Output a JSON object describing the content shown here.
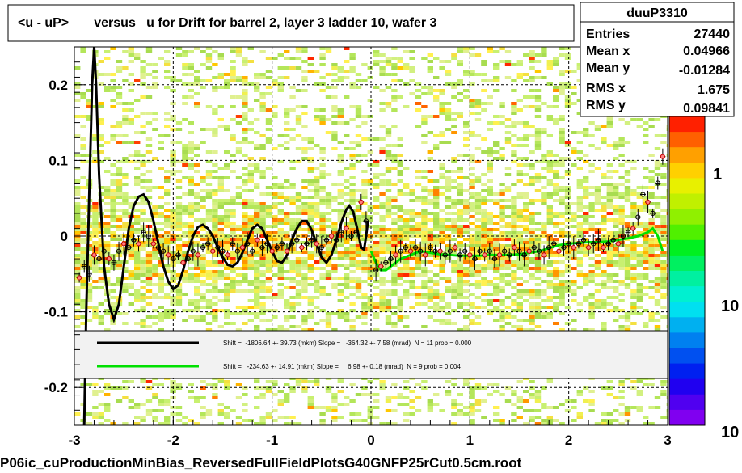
{
  "title": "<u - uP>       versus   u for Drift for barrel 2, layer 3 ladder 10, wafer 3",
  "footer": "P06ic_cuProductionMinBias_ReversedFullFieldPlotsG40GNFP25rCut0.5cm.root",
  "stats": {
    "name": "duuP3310",
    "rows": [
      {
        "label": "Entries",
        "value": "27440"
      },
      {
        "label": "Mean x",
        "value": "0.04966"
      },
      {
        "label": "Mean y",
        "value": "-0.01284"
      },
      {
        "label": "RMS x",
        "value": "1.675"
      },
      {
        "label": "RMS y",
        "value": "0.09841"
      }
    ]
  },
  "legend": [
    {
      "color": "#000000",
      "text": "Shift =  -1806.64 +- 39.73 (mkm) Slope =   -364.32 +- 7.58 (mrad)  N = 11 prob = 0.000"
    },
    {
      "color": "#00e000",
      "text": "Shift =   -234.63 +- 14.91 (mkm) Slope =     6.98 +- 0.18 (mrad)  N = 9 prob = 0.004"
    }
  ],
  "colorbar_labels": [
    "1",
    "10",
    "10"
  ],
  "chart_data": {
    "type": "heatmap",
    "xlim": [
      -3,
      3
    ],
    "ylim": [
      -0.25,
      0.25
    ],
    "x_ticks": [
      -3,
      -2,
      -1,
      0,
      1,
      2,
      3
    ],
    "y_ticks": [
      -0.2,
      -0.1,
      0,
      0.1,
      0.2
    ],
    "x_tick_labels": [
      "-3",
      "-2",
      "-1",
      "0",
      "1",
      "2",
      "3"
    ],
    "y_tick_labels": [
      "-0.2",
      "-0.1",
      "0",
      "0.1",
      "0.2"
    ],
    "grid": true,
    "profile_points": [
      [
        -2.95,
        -0.055
      ],
      [
        -2.9,
        -0.04
      ],
      [
        -2.85,
        -0.05
      ],
      [
        -2.8,
        -0.025
      ],
      [
        -2.75,
        -0.03
      ],
      [
        -2.7,
        -0.02
      ],
      [
        -2.65,
        -0.03
      ],
      [
        -2.6,
        -0.035
      ],
      [
        -2.55,
        -0.02
      ],
      [
        -2.5,
        -0.01
      ],
      [
        -2.45,
        -0.015
      ],
      [
        -2.4,
        -0.005
      ],
      [
        -2.35,
        -0.01
      ],
      [
        -2.3,
        0.005
      ],
      [
        -2.25,
        0.0
      ],
      [
        -2.2,
        -0.01
      ],
      [
        -2.15,
        -0.015
      ],
      [
        -2.1,
        -0.02
      ],
      [
        -2.05,
        -0.025
      ],
      [
        -2.0,
        -0.03
      ],
      [
        -1.95,
        -0.025
      ],
      [
        -1.9,
        -0.035
      ],
      [
        -1.85,
        -0.03
      ],
      [
        -1.8,
        -0.02
      ],
      [
        -1.75,
        -0.025
      ],
      [
        -1.7,
        -0.015
      ],
      [
        -1.65,
        -0.01
      ],
      [
        -1.6,
        -0.02
      ],
      [
        -1.55,
        -0.015
      ],
      [
        -1.5,
        -0.02
      ],
      [
        -1.45,
        -0.025
      ],
      [
        -1.4,
        -0.01
      ],
      [
        -1.35,
        -0.02
      ],
      [
        -1.3,
        -0.015
      ],
      [
        -1.25,
        -0.01
      ],
      [
        -1.2,
        -0.02
      ],
      [
        -1.15,
        -0.005
      ],
      [
        -1.1,
        -0.015
      ],
      [
        -1.05,
        -0.01
      ],
      [
        -1.0,
        -0.02
      ],
      [
        -0.95,
        -0.015
      ],
      [
        -0.9,
        -0.01
      ],
      [
        -0.85,
        -0.02
      ],
      [
        -0.8,
        -0.01
      ],
      [
        -0.75,
        -0.005
      ],
      [
        -0.7,
        -0.015
      ],
      [
        -0.65,
        -0.01
      ],
      [
        -0.6,
        -0.005
      ],
      [
        -0.55,
        -0.01
      ],
      [
        -0.5,
        -0.015
      ],
      [
        -0.45,
        -0.005
      ],
      [
        -0.4,
        0.0
      ],
      [
        -0.35,
        -0.005
      ],
      [
        -0.3,
        0.005
      ],
      [
        -0.25,
        0.01
      ],
      [
        -0.2,
        0.0
      ],
      [
        -0.15,
        0.005
      ],
      [
        -0.1,
        0.045
      ],
      [
        -0.05,
        0.02
      ],
      [
        0.05,
        -0.045
      ],
      [
        0.1,
        -0.04
      ],
      [
        0.15,
        -0.035
      ],
      [
        0.2,
        -0.03
      ],
      [
        0.25,
        -0.025
      ],
      [
        0.3,
        -0.02
      ],
      [
        0.35,
        -0.015
      ],
      [
        0.4,
        -0.02
      ],
      [
        0.45,
        -0.015
      ],
      [
        0.5,
        -0.02
      ],
      [
        0.55,
        -0.025
      ],
      [
        0.6,
        -0.015
      ],
      [
        0.65,
        -0.02
      ],
      [
        0.7,
        -0.02
      ],
      [
        0.75,
        -0.025
      ],
      [
        0.8,
        -0.02
      ],
      [
        0.85,
        -0.015
      ],
      [
        0.9,
        -0.025
      ],
      [
        0.95,
        -0.02
      ],
      [
        1.0,
        -0.025
      ],
      [
        1.05,
        -0.03
      ],
      [
        1.1,
        -0.02
      ],
      [
        1.15,
        -0.025
      ],
      [
        1.2,
        -0.02
      ],
      [
        1.25,
        -0.03
      ],
      [
        1.3,
        -0.025
      ],
      [
        1.35,
        -0.02
      ],
      [
        1.4,
        -0.025
      ],
      [
        1.45,
        -0.015
      ],
      [
        1.5,
        -0.02
      ],
      [
        1.55,
        -0.025
      ],
      [
        1.6,
        -0.02
      ],
      [
        1.65,
        -0.015
      ],
      [
        1.7,
        -0.02
      ],
      [
        1.75,
        -0.025
      ],
      [
        1.8,
        -0.015
      ],
      [
        1.85,
        -0.01
      ],
      [
        1.9,
        -0.02
      ],
      [
        1.95,
        -0.015
      ],
      [
        2.0,
        -0.01
      ],
      [
        2.05,
        -0.015
      ],
      [
        2.1,
        -0.01
      ],
      [
        2.15,
        -0.005
      ],
      [
        2.2,
        -0.015
      ],
      [
        2.25,
        -0.01
      ],
      [
        2.3,
        -0.005
      ],
      [
        2.35,
        -0.015
      ],
      [
        2.4,
        -0.01
      ],
      [
        2.45,
        -0.005
      ],
      [
        2.5,
        -0.01
      ],
      [
        2.55,
        0.0
      ],
      [
        2.6,
        0.005
      ],
      [
        2.65,
        0.01
      ],
      [
        2.7,
        0.025
      ],
      [
        2.75,
        0.055
      ],
      [
        2.8,
        0.045
      ],
      [
        2.85,
        0.03
      ],
      [
        2.9,
        0.07
      ],
      [
        2.95,
        0.105
      ]
    ],
    "black_curve": [
      [
        -2.9,
        -0.25
      ],
      [
        -2.88,
        -0.1
      ],
      [
        -2.85,
        0.05
      ],
      [
        -2.82,
        0.2
      ],
      [
        -2.8,
        0.25
      ],
      [
        -2.78,
        0.2
      ],
      [
        -2.75,
        0.08
      ],
      [
        -2.7,
        -0.04
      ],
      [
        -2.65,
        -0.09
      ],
      [
        -2.6,
        -0.11
      ],
      [
        -2.55,
        -0.09
      ],
      [
        -2.5,
        -0.04
      ],
      [
        -2.45,
        0.01
      ],
      [
        -2.4,
        0.04
      ],
      [
        -2.35,
        0.052
      ],
      [
        -2.3,
        0.055
      ],
      [
        -2.25,
        0.045
      ],
      [
        -2.2,
        0.02
      ],
      [
        -2.15,
        -0.01
      ],
      [
        -2.1,
        -0.04
      ],
      [
        -2.05,
        -0.06
      ],
      [
        -2.0,
        -0.07
      ],
      [
        -1.95,
        -0.065
      ],
      [
        -1.9,
        -0.045
      ],
      [
        -1.85,
        -0.02
      ],
      [
        -1.8,
        0.0
      ],
      [
        -1.75,
        0.012
      ],
      [
        -1.7,
        0.015
      ],
      [
        -1.65,
        0.01
      ],
      [
        -1.6,
        0.0
      ],
      [
        -1.55,
        -0.015
      ],
      [
        -1.5,
        -0.028
      ],
      [
        -1.45,
        -0.038
      ],
      [
        -1.4,
        -0.04
      ],
      [
        -1.35,
        -0.035
      ],
      [
        -1.3,
        -0.022
      ],
      [
        -1.25,
        -0.005
      ],
      [
        -1.2,
        0.01
      ],
      [
        -1.15,
        0.015
      ],
      [
        -1.1,
        0.01
      ],
      [
        -1.05,
        -0.005
      ],
      [
        -1.0,
        -0.02
      ],
      [
        -0.95,
        -0.033
      ],
      [
        -0.9,
        -0.035
      ],
      [
        -0.85,
        -0.025
      ],
      [
        -0.8,
        -0.005
      ],
      [
        -0.75,
        0.01
      ],
      [
        -0.7,
        0.02
      ],
      [
        -0.65,
        0.02
      ],
      [
        -0.6,
        0.008
      ],
      [
        -0.55,
        -0.01
      ],
      [
        -0.5,
        -0.028
      ],
      [
        -0.45,
        -0.035
      ],
      [
        -0.4,
        -0.025
      ],
      [
        -0.35,
        -0.005
      ],
      [
        -0.3,
        0.018
      ],
      [
        -0.25,
        0.035
      ],
      [
        -0.22,
        0.04
      ],
      [
        -0.18,
        0.032
      ],
      [
        -0.14,
        0.01
      ],
      [
        -0.1,
        -0.015
      ],
      [
        -0.07,
        -0.018
      ],
      [
        -0.05,
        0.0
      ],
      [
        -0.03,
        0.02
      ]
    ],
    "green_curve": [
      [
        0.0,
        -0.02
      ],
      [
        0.05,
        -0.035
      ],
      [
        0.1,
        -0.045
      ],
      [
        0.15,
        -0.045
      ],
      [
        0.2,
        -0.04
      ],
      [
        0.3,
        -0.03
      ],
      [
        0.4,
        -0.025
      ],
      [
        0.5,
        -0.02
      ],
      [
        0.6,
        -0.022
      ],
      [
        0.7,
        -0.024
      ],
      [
        0.8,
        -0.025
      ],
      [
        0.9,
        -0.026
      ],
      [
        1.0,
        -0.026
      ],
      [
        1.1,
        -0.026
      ],
      [
        1.2,
        -0.025
      ],
      [
        1.3,
        -0.025
      ],
      [
        1.4,
        -0.025
      ],
      [
        1.5,
        -0.024
      ],
      [
        1.6,
        -0.022
      ],
      [
        1.7,
        -0.02
      ],
      [
        1.8,
        -0.016
      ],
      [
        1.9,
        -0.012
      ],
      [
        2.0,
        -0.01
      ],
      [
        2.1,
        -0.009
      ],
      [
        2.2,
        -0.008
      ],
      [
        2.3,
        -0.008
      ],
      [
        2.4,
        -0.007
      ],
      [
        2.5,
        -0.005
      ],
      [
        2.6,
        -0.003
      ],
      [
        2.7,
        0.0
      ],
      [
        2.8,
        0.005
      ],
      [
        2.85,
        0.01
      ],
      [
        2.9,
        0.0
      ],
      [
        2.95,
        -0.02
      ]
    ]
  }
}
